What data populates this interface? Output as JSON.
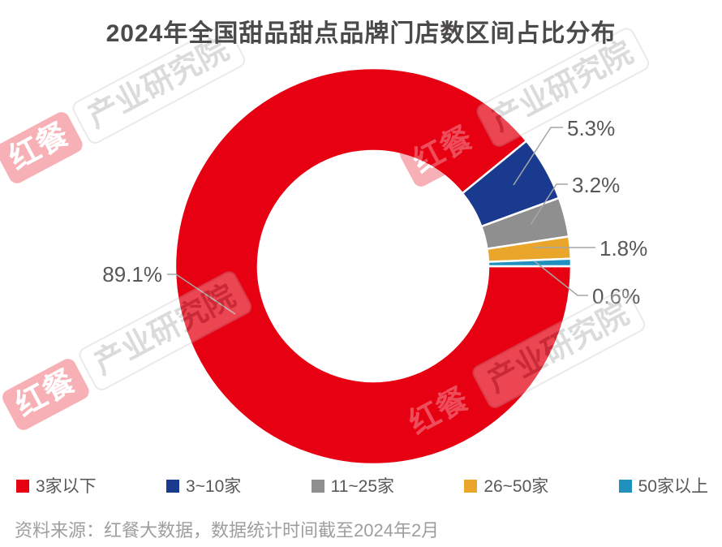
{
  "chart_data": {
    "type": "pie",
    "donut": true,
    "title": "2024年全国甜品甜点品牌门店数区间占比分布",
    "legend_position": "bottom",
    "start_angle": "3-o'clock, clockwise",
    "slices": [
      {
        "label": "3家以下",
        "value": 89.1,
        "pct_label": "89.1%",
        "color": "#E60012"
      },
      {
        "label": "3~10家",
        "value": 5.3,
        "pct_label": "5.3%",
        "color": "#1A3A8F"
      },
      {
        "label": "11~25家",
        "value": 3.2,
        "pct_label": "3.2%",
        "color": "#8F8F8F"
      },
      {
        "label": "26~50家",
        "value": 1.8,
        "pct_label": "1.8%",
        "color": "#EAA62B"
      },
      {
        "label": "50家以上",
        "value": 0.6,
        "pct_label": "0.6%",
        "color": "#2090BF"
      }
    ]
  },
  "watermark": {
    "brand": "红餐",
    "unit": "产业研究院"
  },
  "footer": {
    "source": "资料来源：红餐大数据，数据统计时间截至2024年2月"
  },
  "colors": {
    "title_text": "#4C4949",
    "label_text": "#595757",
    "leader_line": "#A6A6A6",
    "legend_text": "#595757",
    "source_text": "#9E9E9E",
    "background": "#FFFFFF"
  }
}
